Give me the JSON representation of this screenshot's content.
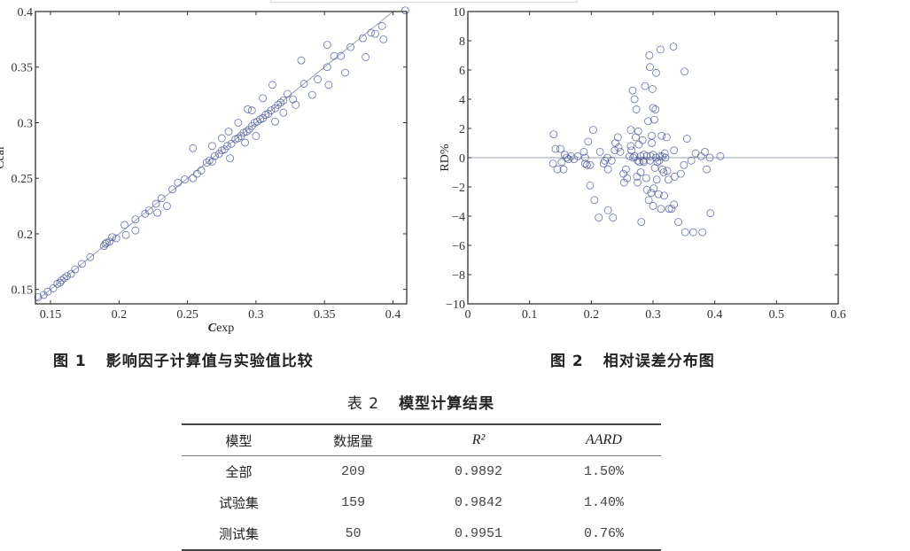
{
  "chart_data": [
    {
      "type": "scatter",
      "xlabel": "Cexp",
      "ylabel": "Ccal",
      "xlim": [
        0.139,
        0.41
      ],
      "ylim": [
        0.137,
        0.4
      ],
      "xticks": [
        "0.15",
        "0.2",
        "0.25",
        "0.3",
        "0.35",
        "0.4"
      ],
      "yticks": [
        "0.15",
        "0.2",
        "0.25",
        "0.3",
        "0.35",
        "0.4"
      ],
      "reference_line": "y = x",
      "marker": "open-circle",
      "marker_color": "#4a5a9a",
      "line_color": "#9aa0b0",
      "points": [
        [
          0.141,
          0.143
        ],
        [
          0.145,
          0.145
        ],
        [
          0.148,
          0.148
        ],
        [
          0.152,
          0.151
        ],
        [
          0.155,
          0.155
        ],
        [
          0.157,
          0.156
        ],
        [
          0.158,
          0.158
        ],
        [
          0.16,
          0.16
        ],
        [
          0.162,
          0.162
        ],
        [
          0.165,
          0.164
        ],
        [
          0.168,
          0.168
        ],
        [
          0.173,
          0.173
        ],
        [
          0.179,
          0.179
        ],
        [
          0.189,
          0.189
        ],
        [
          0.19,
          0.191
        ],
        [
          0.191,
          0.192
        ],
        [
          0.193,
          0.193
        ],
        [
          0.195,
          0.197
        ],
        [
          0.198,
          0.196
        ],
        [
          0.212,
          0.213
        ],
        [
          0.219,
          0.218
        ],
        [
          0.222,
          0.221
        ],
        [
          0.227,
          0.227
        ],
        [
          0.231,
          0.232
        ],
        [
          0.239,
          0.24
        ],
        [
          0.243,
          0.246
        ],
        [
          0.248,
          0.249
        ],
        [
          0.254,
          0.25
        ],
        [
          0.257,
          0.254
        ],
        [
          0.26,
          0.257
        ],
        [
          0.264,
          0.264
        ],
        [
          0.266,
          0.266
        ],
        [
          0.268,
          0.265
        ],
        [
          0.27,
          0.27
        ],
        [
          0.273,
          0.272
        ],
        [
          0.275,
          0.275
        ],
        [
          0.277,
          0.276
        ],
        [
          0.279,
          0.279
        ],
        [
          0.282,
          0.281
        ],
        [
          0.285,
          0.285
        ],
        [
          0.287,
          0.286
        ],
        [
          0.289,
          0.288
        ],
        [
          0.291,
          0.291
        ],
        [
          0.293,
          0.292
        ],
        [
          0.295,
          0.294
        ],
        [
          0.297,
          0.297
        ],
        [
          0.299,
          0.3
        ],
        [
          0.301,
          0.301
        ],
        [
          0.303,
          0.303
        ],
        [
          0.305,
          0.304
        ],
        [
          0.307,
          0.307
        ],
        [
          0.309,
          0.308
        ],
        [
          0.311,
          0.311
        ],
        [
          0.314,
          0.313
        ],
        [
          0.316,
          0.316
        ],
        [
          0.318,
          0.318
        ],
        [
          0.32,
          0.32
        ],
        [
          0.323,
          0.326
        ],
        [
          0.327,
          0.321
        ],
        [
          0.335,
          0.335
        ],
        [
          0.345,
          0.339
        ],
        [
          0.352,
          0.35
        ],
        [
          0.357,
          0.36
        ],
        [
          0.362,
          0.36
        ],
        [
          0.369,
          0.368
        ],
        [
          0.378,
          0.376
        ],
        [
          0.384,
          0.381
        ],
        [
          0.387,
          0.38
        ],
        [
          0.392,
          0.387
        ],
        [
          0.409,
          0.401
        ],
        [
          0.268,
          0.279
        ],
        [
          0.275,
          0.286
        ],
        [
          0.28,
          0.292
        ],
        [
          0.292,
          0.282
        ],
        [
          0.297,
          0.311
        ],
        [
          0.32,
          0.309
        ],
        [
          0.254,
          0.277
        ],
        [
          0.333,
          0.356
        ],
        [
          0.352,
          0.37
        ],
        [
          0.312,
          0.334
        ],
        [
          0.365,
          0.345
        ],
        [
          0.353,
          0.334
        ],
        [
          0.38,
          0.359
        ],
        [
          0.393,
          0.375
        ],
        [
          0.235,
          0.225
        ],
        [
          0.212,
          0.203
        ],
        [
          0.281,
          0.268
        ],
        [
          0.228,
          0.219
        ],
        [
          0.204,
          0.208
        ],
        [
          0.205,
          0.199
        ],
        [
          0.287,
          0.3
        ],
        [
          0.305,
          0.322
        ],
        [
          0.294,
          0.312
        ],
        [
          0.341,
          0.325
        ],
        [
          0.329,
          0.316
        ],
        [
          0.314,
          0.301
        ],
        [
          0.3,
          0.288
        ]
      ]
    },
    {
      "type": "scatter",
      "xlabel": "",
      "ylabel": "RD%",
      "xlim": [
        0,
        0.6
      ],
      "ylim": [
        -10,
        10
      ],
      "xticks": [
        "0",
        "0.1",
        "0.2",
        "0.3",
        "0.4",
        "0.5",
        "0.6"
      ],
      "yticks": [
        "−10",
        "−8",
        "−6",
        "−4",
        "−2",
        "0",
        "2",
        "4",
        "6",
        "8",
        "10"
      ],
      "reference_line": "y = 0",
      "marker": "open-circle",
      "marker_color": "#4a5a9a",
      "line_color": "#9aa0b0",
      "points": [
        [
          0.139,
          1.6
        ],
        [
          0.142,
          0.6
        ],
        [
          0.138,
          -0.4
        ],
        [
          0.145,
          -0.8
        ],
        [
          0.15,
          0.6
        ],
        [
          0.155,
          -0.8
        ],
        [
          0.152,
          -0.3
        ],
        [
          0.157,
          0.2
        ],
        [
          0.16,
          0
        ],
        [
          0.163,
          -0.1
        ],
        [
          0.167,
          0.1
        ],
        [
          0.172,
          -0.1
        ],
        [
          0.178,
          0.1
        ],
        [
          0.188,
          0.4
        ],
        [
          0.19,
          0
        ],
        [
          0.19,
          -0.4
        ],
        [
          0.193,
          -0.5
        ],
        [
          0.195,
          1.1
        ],
        [
          0.198,
          -0.5
        ],
        [
          0.198,
          -1.9
        ],
        [
          0.203,
          1.9
        ],
        [
          0.205,
          -2.9
        ],
        [
          0.212,
          -4.1
        ],
        [
          0.214,
          0.4
        ],
        [
          0.22,
          -0.4
        ],
        [
          0.222,
          -0.2
        ],
        [
          0.226,
          0
        ],
        [
          0.227,
          -0.8
        ],
        [
          0.227,
          -3.6
        ],
        [
          0.233,
          -0.2
        ],
        [
          0.235,
          -4.1
        ],
        [
          0.238,
          0.5
        ],
        [
          0.239,
          1.0
        ],
        [
          0.243,
          1.4
        ],
        [
          0.244,
          0.7
        ],
        [
          0.247,
          0.4
        ],
        [
          0.252,
          -1.1
        ],
        [
          0.253,
          -1.7
        ],
        [
          0.256,
          -0.8
        ],
        [
          0.258,
          -1.4
        ],
        [
          0.262,
          0.1
        ],
        [
          0.264,
          1.9
        ],
        [
          0.264,
          0.8
        ],
        [
          0.265,
          0.5
        ],
        [
          0.267,
          4.6
        ],
        [
          0.268,
          0
        ],
        [
          0.27,
          4.0
        ],
        [
          0.272,
          1.4
        ],
        [
          0.273,
          3.3
        ],
        [
          0.274,
          -1.3
        ],
        [
          0.275,
          -1.7
        ],
        [
          0.276,
          1.8
        ],
        [
          0.277,
          0.9
        ],
        [
          0.278,
          -0.3
        ],
        [
          0.28,
          -1.0
        ],
        [
          0.281,
          -4.4
        ],
        [
          0.283,
          1.2
        ],
        [
          0.284,
          -0.2
        ],
        [
          0.285,
          0.2
        ],
        [
          0.287,
          4.9
        ],
        [
          0.289,
          -1.4
        ],
        [
          0.29,
          -2.2
        ],
        [
          0.292,
          2.5
        ],
        [
          0.293,
          -2.9
        ],
        [
          0.294,
          7.0
        ],
        [
          0.295,
          6.2
        ],
        [
          0.296,
          0.1
        ],
        [
          0.297,
          -2.4
        ],
        [
          0.298,
          1.5
        ],
        [
          0.298,
          1.0
        ],
        [
          0.299,
          4.7
        ],
        [
          0.3,
          -3.3
        ],
        [
          0.3,
          3.4
        ],
        [
          0.301,
          -2.1
        ],
        [
          0.302,
          2.6
        ],
        [
          0.303,
          -0.7
        ],
        [
          0.304,
          3.3
        ],
        [
          0.305,
          5.8
        ],
        [
          0.306,
          -1.5
        ],
        [
          0.307,
          -0.3
        ],
        [
          0.309,
          -2.5
        ],
        [
          0.311,
          0.1
        ],
        [
          0.312,
          7.4
        ],
        [
          0.313,
          -3.5
        ],
        [
          0.314,
          1.5
        ],
        [
          0.315,
          -0.8
        ],
        [
          0.317,
          -1.0
        ],
        [
          0.318,
          -2.6
        ],
        [
          0.319,
          0.3
        ],
        [
          0.322,
          1.4
        ],
        [
          0.323,
          -0.9
        ],
        [
          0.325,
          -1.5
        ],
        [
          0.326,
          -3.5
        ],
        [
          0.33,
          -3.5
        ],
        [
          0.333,
          7.6
        ],
        [
          0.334,
          -3.2
        ],
        [
          0.334,
          0.5
        ],
        [
          0.335,
          -1.3
        ],
        [
          0.341,
          -4.4
        ],
        [
          0.345,
          -1.1
        ],
        [
          0.35,
          -0.5
        ],
        [
          0.351,
          5.9
        ],
        [
          0.352,
          -5.1
        ],
        [
          0.355,
          1.3
        ],
        [
          0.362,
          -0.2
        ],
        [
          0.365,
          -5.1
        ],
        [
          0.369,
          0.3
        ],
        [
          0.378,
          0.1
        ],
        [
          0.38,
          -5.1
        ],
        [
          0.384,
          0.4
        ],
        [
          0.387,
          -0.8
        ],
        [
          0.392,
          0
        ],
        [
          0.393,
          -3.8
        ],
        [
          0.409,
          0.1
        ],
        [
          0.27,
          0.1
        ],
        [
          0.275,
          -0.2
        ],
        [
          0.28,
          0.1
        ],
        [
          0.285,
          -0.3
        ],
        [
          0.29,
          0.1
        ],
        [
          0.295,
          -0.2
        ],
        [
          0.3,
          0.2
        ],
        [
          0.305,
          0
        ],
        [
          0.31,
          -0.2
        ],
        [
          0.315,
          0.1
        ],
        [
          0.32,
          0
        ]
      ]
    }
  ],
  "captions": {
    "fig1": {
      "num": "图 1",
      "text": "影响因子计算值与实验值比较"
    },
    "fig2": {
      "num": "图 2",
      "text": "相对误差分布图"
    }
  },
  "table": {
    "num": "表 2",
    "title": "模型计算结果",
    "headers": [
      "模型",
      "数据量",
      "R²",
      "AARD"
    ],
    "rows": [
      [
        "全部",
        "209",
        "0.9892",
        "1.50%"
      ],
      [
        "试验集",
        "159",
        "0.9842",
        "1.40%"
      ],
      [
        "测试集",
        "50",
        "0.9951",
        "0.76%"
      ]
    ]
  }
}
